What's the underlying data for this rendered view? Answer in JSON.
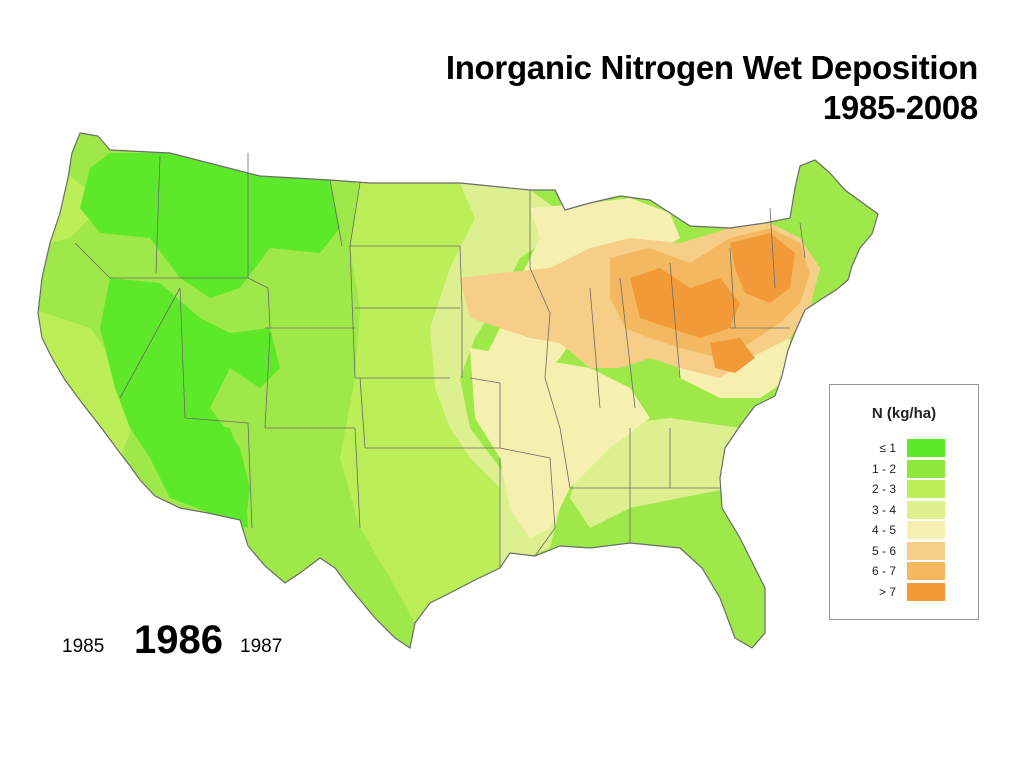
{
  "title": {
    "line1": "Inorganic Nitrogen Wet Deposition",
    "line2": "1985-2008"
  },
  "map": {
    "region": "Contiguous United States",
    "variable": "Inorganic nitrogen wet deposition",
    "base_color": "#a9e850",
    "state_border_color": "#6b6b6b"
  },
  "legend": {
    "title": "N  (kg/ha)",
    "classes": [
      {
        "label": "≤ 1",
        "color": "#5de82a"
      },
      {
        "label": "1 - 2",
        "color": "#8ee83c"
      },
      {
        "label": "2 - 3",
        "color": "#bcee58"
      },
      {
        "label": "3 - 4",
        "color": "#dcf090"
      },
      {
        "label": "4 - 5",
        "color": "#f6f0b0"
      },
      {
        "label": "5 - 6",
        "color": "#f6ce88"
      },
      {
        "label": "6 - 7",
        "color": "#f4b860"
      },
      {
        "label": "> 7",
        "color": "#f29a38"
      }
    ]
  },
  "timeline": {
    "previous": "1985",
    "current": "1986",
    "next": "1987"
  }
}
